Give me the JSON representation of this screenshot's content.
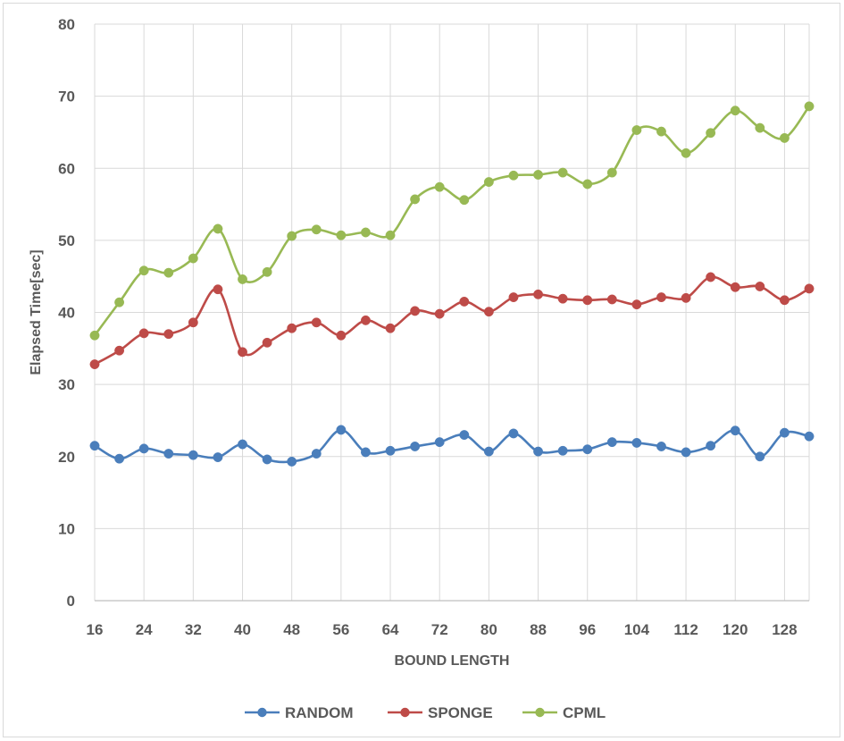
{
  "chart_data": {
    "type": "line",
    "title": "",
    "xlabel": "BOUND LENGTH",
    "ylabel": "Elapsed Time[sec]",
    "ylim": [
      0,
      80
    ],
    "yticks": [
      0,
      10,
      20,
      30,
      40,
      50,
      60,
      70,
      80
    ],
    "xlim": [
      16,
      132
    ],
    "xticks": [
      16,
      24,
      32,
      40,
      48,
      56,
      64,
      72,
      80,
      88,
      96,
      104,
      112,
      120,
      128
    ],
    "x": [
      16,
      20,
      24,
      28,
      32,
      36,
      40,
      44,
      48,
      52,
      56,
      60,
      64,
      68,
      72,
      76,
      80,
      84,
      88,
      92,
      96,
      100,
      104,
      108,
      112,
      116,
      120,
      124,
      128,
      132
    ],
    "grid": true,
    "legend_position": "bottom",
    "series": [
      {
        "name": "RANDOM",
        "color": "#4a7ebb",
        "values": [
          21.5,
          19.7,
          21.1,
          20.4,
          20.2,
          19.9,
          21.7,
          19.6,
          19.3,
          20.4,
          23.7,
          20.6,
          20.8,
          21.4,
          22.0,
          23.0,
          20.7,
          23.2,
          20.7,
          20.8,
          21.0,
          22.0,
          21.9,
          21.4,
          20.6,
          21.5,
          23.6,
          20.0,
          23.3,
          22.8
        ]
      },
      {
        "name": "SPONGE",
        "color": "#be4b48",
        "values": [
          32.8,
          34.7,
          37.1,
          37.0,
          38.6,
          43.2,
          34.5,
          35.8,
          37.8,
          38.6,
          36.8,
          38.9,
          37.8,
          40.2,
          39.8,
          41.5,
          40.1,
          42.1,
          42.5,
          41.9,
          41.7,
          41.8,
          41.1,
          42.1,
          42.0,
          44.9,
          43.5,
          43.6,
          41.7,
          43.3
        ]
      },
      {
        "name": "CPML",
        "color": "#98b954",
        "values": [
          36.8,
          41.4,
          45.8,
          45.5,
          47.5,
          51.6,
          44.6,
          45.6,
          50.6,
          51.5,
          50.7,
          51.1,
          50.7,
          55.7,
          57.4,
          55.6,
          58.1,
          59.0,
          59.1,
          59.4,
          57.8,
          59.4,
          65.3,
          65.1,
          62.1,
          64.9,
          68.0,
          65.6,
          64.2,
          68.6
        ]
      }
    ]
  }
}
